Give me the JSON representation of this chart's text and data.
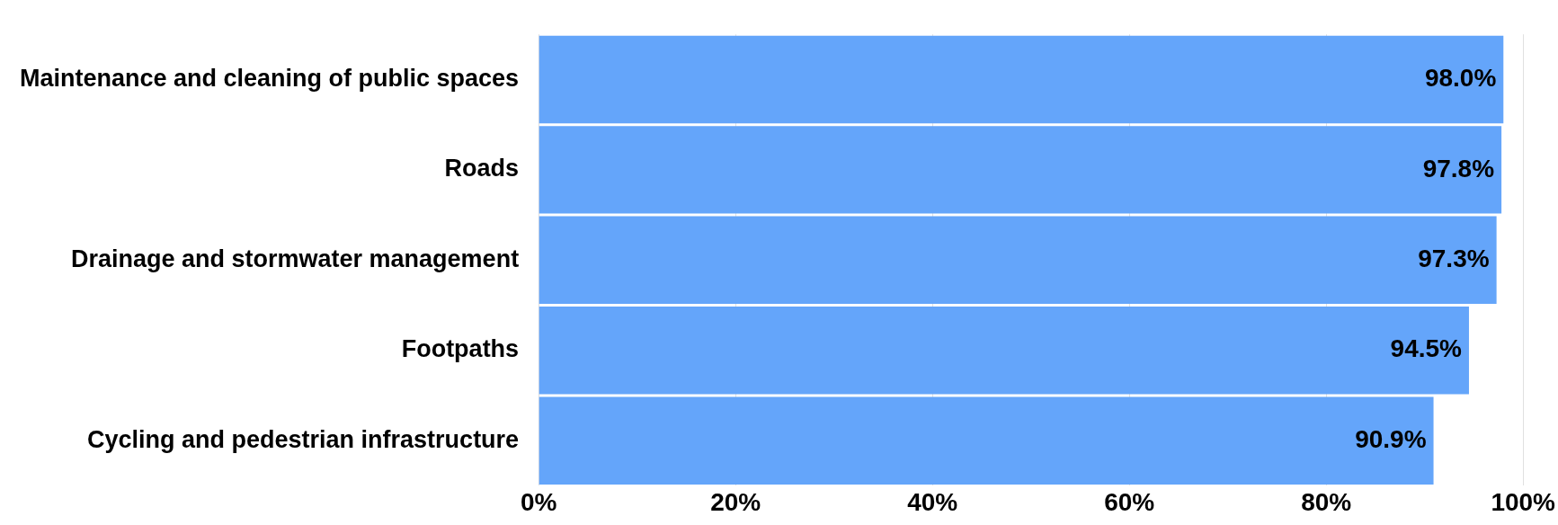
{
  "chart_data": {
    "type": "bar",
    "orientation": "horizontal",
    "categories": [
      "Maintenance and cleaning of public spaces",
      "Roads",
      "Drainage and stormwater management",
      "Footpaths",
      "Cycling and pedestrian infrastructure"
    ],
    "values": [
      98.0,
      97.8,
      97.3,
      94.5,
      90.9
    ],
    "value_labels": [
      "98.0%",
      "97.8%",
      "97.3%",
      "94.5%",
      "90.9%"
    ],
    "color": "#64a5fa",
    "xlim": [
      0,
      100
    ],
    "xticks": [
      {
        "value": 0,
        "label": "0%"
      },
      {
        "value": 20,
        "label": "20%"
      },
      {
        "value": 40,
        "label": "40%"
      },
      {
        "value": 60,
        "label": "60%"
      },
      {
        "value": 80,
        "label": "80%"
      },
      {
        "value": 100,
        "label": "100%"
      }
    ],
    "grid": "x",
    "legend": false
  }
}
